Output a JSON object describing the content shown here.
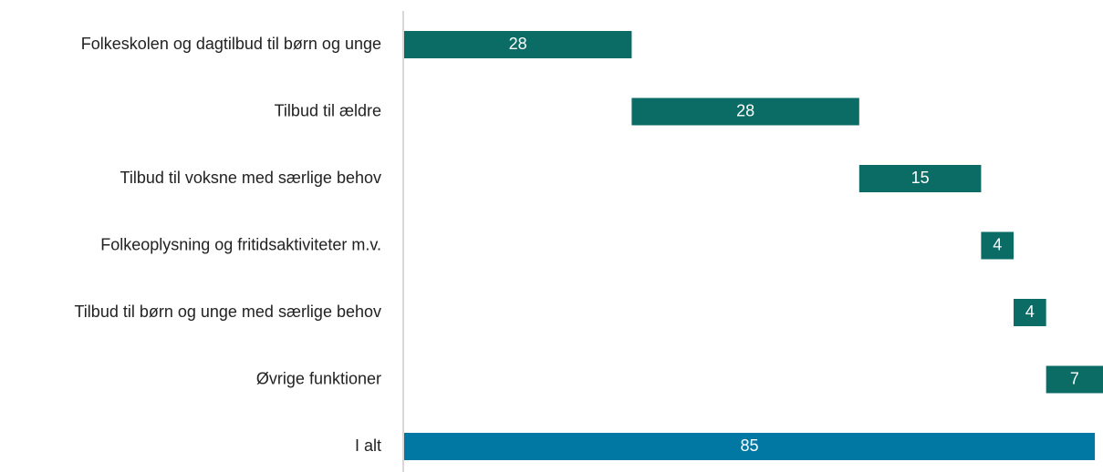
{
  "chart_data": {
    "type": "waterfall",
    "orientation": "horizontal",
    "categories": [
      "Folkeskolen og dagtilbud til børn og unge",
      "Tilbud til ældre",
      "Tilbud til voksne med særlige behov",
      "Folkeoplysning og fritidsaktiviteter m.v.",
      "Tilbud til børn og unge med særlige behov",
      "Øvrige funktioner"
    ],
    "values": [
      28,
      28,
      15,
      4,
      4,
      7
    ],
    "color": "#0b6b65",
    "total_label": "I alt",
    "total": 85,
    "total_color": "#0078a3"
  }
}
